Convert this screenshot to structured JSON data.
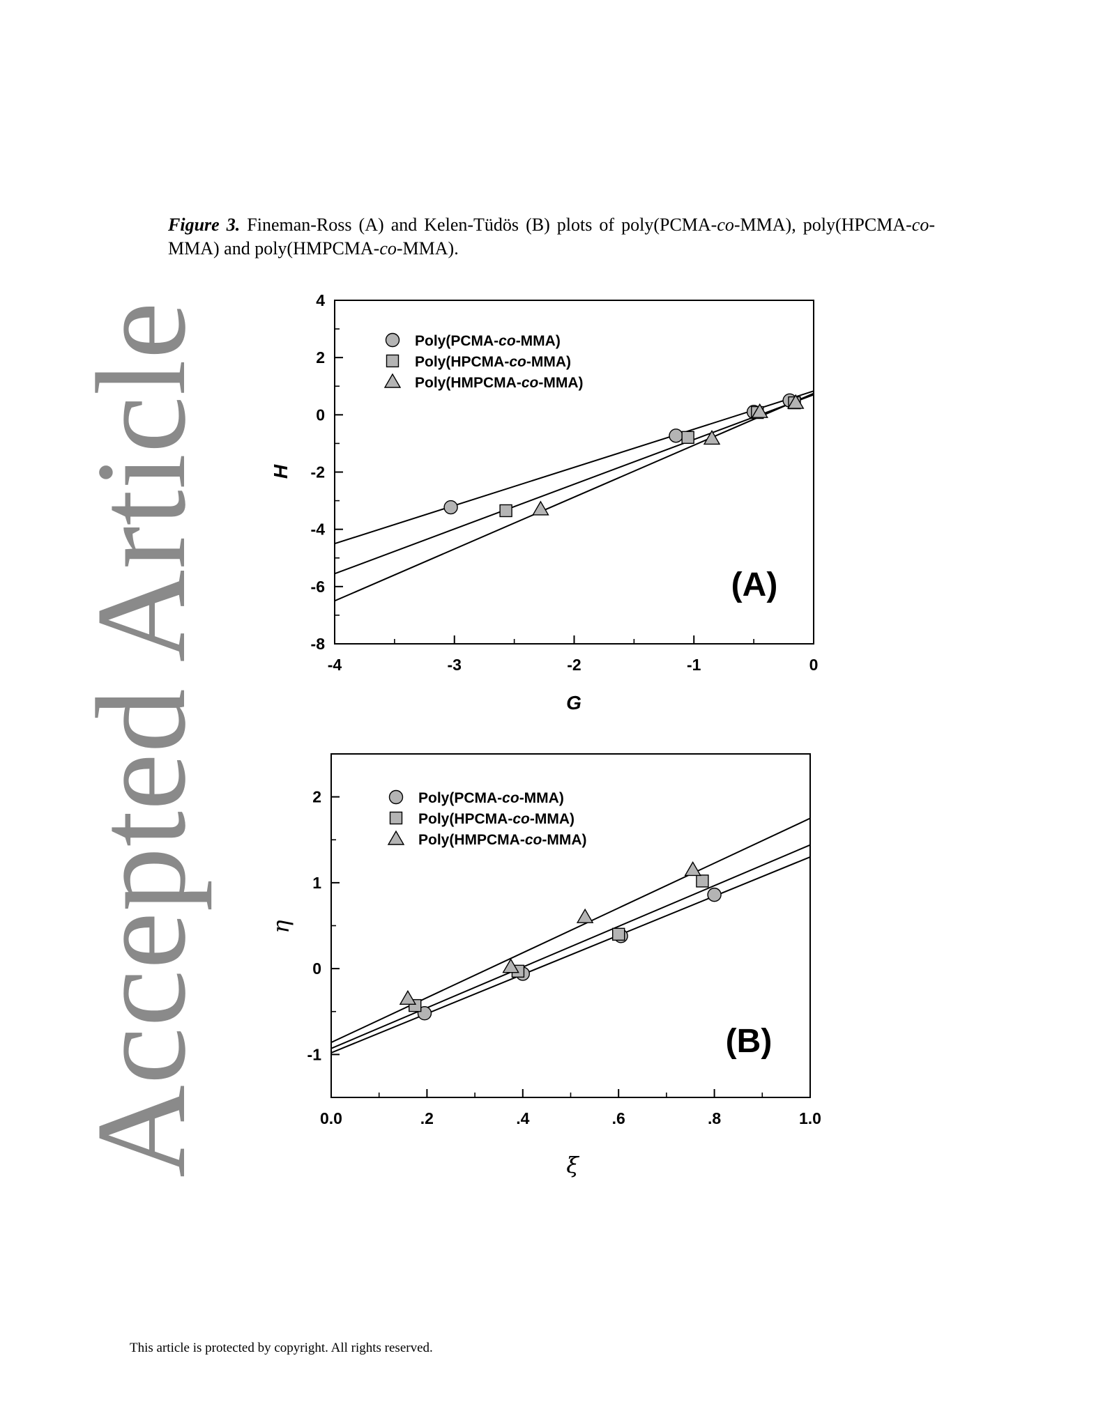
{
  "watermark": "Accepted Article",
  "caption": {
    "label": "Figure 3.",
    "text_1": " Fineman-Ross (A) and Kelen-Tüdös (B) plots of poly(PCMA-",
    "co_1": "co",
    "text_2": "-MMA), poly(HPCMA-",
    "co_2": "co",
    "text_3": "-MMA) and poly(HMPCMA-",
    "co_3": "co",
    "text_4": "-MMA)."
  },
  "footer": "This article is protected by copyright. All rights reserved.",
  "colors": {
    "marker_fill": "#b4b4b4",
    "line": "#000000",
    "watermark": "#8a8a8a"
  },
  "chart_data": [
    {
      "type": "scatter",
      "panel_label": "(A)",
      "xlabel": "G",
      "ylabel": "H",
      "xlim": [
        -4,
        0
      ],
      "ylim": [
        -8,
        4
      ],
      "x_ticks": [
        -4,
        -3,
        -2,
        -1,
        0
      ],
      "x_tick_labels": [
        "-4",
        "-3",
        "-2",
        "-1",
        "0"
      ],
      "x_minor_ticks": [
        -3.5,
        -2.5,
        -1.5,
        -0.5
      ],
      "y_ticks": [
        -8,
        -6,
        -4,
        -2,
        0,
        2,
        4
      ],
      "y_tick_labels": [
        "-8",
        "-6",
        "-4",
        "-2",
        "0",
        "2",
        "4"
      ],
      "y_minor_ticks": [
        -7,
        -5,
        -3,
        -1,
        1,
        3
      ],
      "legend_position": "top-left",
      "series": [
        {
          "name": "Poly(PCMA-co-MMA)",
          "name_parts": [
            "Poly(PCMA-",
            "co",
            "-MMA)"
          ],
          "marker": "circle",
          "x": [
            -3.03,
            -1.15,
            -0.5,
            -0.2
          ],
          "y": [
            -3.23,
            -0.73,
            0.1,
            0.5
          ],
          "fit_line": [
            [
              -4,
              -4.5
            ],
            [
              0,
              0.83
            ]
          ]
        },
        {
          "name": "Poly(HPCMA-co-MMA)",
          "name_parts": [
            "Poly(HPCMA-",
            "co",
            "-MMA)"
          ],
          "marker": "square",
          "x": [
            -2.57,
            -1.05,
            -0.47,
            -0.16
          ],
          "y": [
            -3.35,
            -0.79,
            0.08,
            0.42
          ],
          "fit_line": [
            [
              -4,
              -5.55
            ],
            [
              0,
              0.7
            ]
          ]
        },
        {
          "name": "Poly(HMPCMA-co-MMA)",
          "name_parts": [
            "Poly(HMPCMA-",
            "co",
            "-MMA)"
          ],
          "marker": "triangle",
          "x": [
            -2.28,
            -0.85,
            -0.45,
            -0.15
          ],
          "y": [
            -3.3,
            -0.83,
            0.1,
            0.42
          ],
          "fit_line": [
            [
              -4,
              -6.5
            ],
            [
              0,
              0.75
            ]
          ]
        }
      ]
    },
    {
      "type": "scatter",
      "panel_label": "(B)",
      "xlabel": "ξ",
      "ylabel": "η",
      "xlim": [
        0,
        1
      ],
      "ylim": [
        -1.5,
        2.5
      ],
      "x_ticks": [
        0,
        0.2,
        0.4,
        0.6,
        0.8,
        1.0
      ],
      "x_tick_labels": [
        "0.0",
        ".2",
        ".4",
        ".6",
        ".8",
        "1.0"
      ],
      "x_minor_ticks": [
        0.1,
        0.3,
        0.5,
        0.7,
        0.9
      ],
      "y_ticks": [
        -1,
        0,
        1,
        2
      ],
      "y_tick_labels": [
        "-1",
        "0",
        "1",
        "2"
      ],
      "y_minor_ticks": [
        -0.5,
        0.5,
        1.5
      ],
      "legend_position": "top-left",
      "series": [
        {
          "name": "Poly(PCMA-co-MMA)",
          "name_parts": [
            "Poly(PCMA-",
            "co",
            "-MMA)"
          ],
          "marker": "circle",
          "x": [
            0.195,
            0.4,
            0.605,
            0.8
          ],
          "y": [
            -0.52,
            -0.06,
            0.38,
            0.86
          ],
          "fit_line": [
            [
              0,
              -0.98
            ],
            [
              1,
              1.3
            ]
          ]
        },
        {
          "name": "Poly(HPCMA-co-MMA)",
          "name_parts": [
            "Poly(HPCMA-",
            "co",
            "-MMA)"
          ],
          "marker": "square",
          "x": [
            0.175,
            0.39,
            0.6,
            0.775
          ],
          "y": [
            -0.43,
            -0.03,
            0.4,
            1.02
          ],
          "fit_line": [
            [
              0,
              -0.93
            ],
            [
              1,
              1.44
            ]
          ]
        },
        {
          "name": "Poly(HMPCMA-co-MMA)",
          "name_parts": [
            "Poly(HMPCMA-",
            "co",
            "-MMA)"
          ],
          "marker": "triangle",
          "x": [
            0.16,
            0.375,
            0.53,
            0.755
          ],
          "y": [
            -0.35,
            0.02,
            0.6,
            1.15
          ],
          "fit_line": [
            [
              0,
              -0.86
            ],
            [
              1,
              1.75
            ]
          ]
        }
      ]
    }
  ]
}
